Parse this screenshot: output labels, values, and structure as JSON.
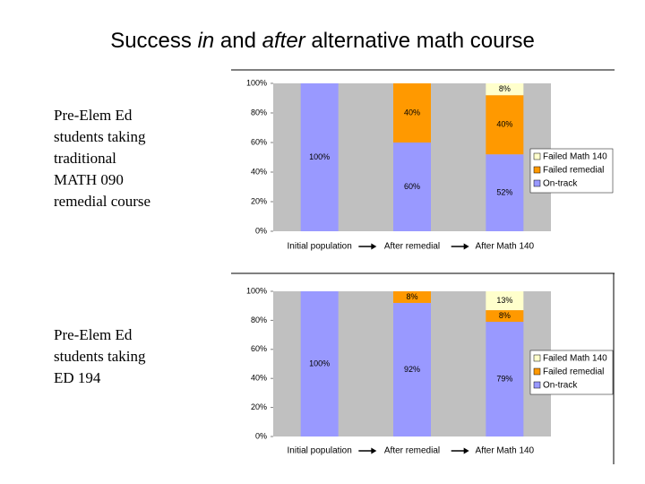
{
  "title": [
    "Success ",
    "in",
    " and ",
    "after",
    " alternative math course"
  ],
  "captions": [
    [
      "Pre-Elem Ed",
      "students taking",
      "traditional",
      "MATH 090",
      "remedial course"
    ],
    [
      "Pre-Elem Ed",
      "students taking",
      "ED 194"
    ]
  ],
  "chart_data": [
    {
      "type": "stacked-bar",
      "categories": [
        "Initial population",
        "After remedial",
        "After Math 140"
      ],
      "ylim": [
        0,
        100
      ],
      "yticks": [
        {
          "value": 0,
          "label": "0%"
        },
        {
          "value": 20,
          "label": "20%"
        },
        {
          "value": 40,
          "label": "40%"
        },
        {
          "value": 60,
          "label": "60%"
        },
        {
          "value": 80,
          "label": "80%"
        },
        {
          "value": 100,
          "label": "100%"
        }
      ],
      "legend": "right",
      "series": [
        {
          "name": "On-track",
          "color": "#9999ff",
          "values": [
            100,
            60,
            52
          ],
          "value_labels": [
            "100%",
            "60%",
            "52%"
          ]
        },
        {
          "name": "Failed remedial",
          "color": "#ff9900",
          "values": [
            0,
            40,
            40
          ],
          "value_labels": [
            null,
            "40%",
            "40%"
          ]
        },
        {
          "name": "Failed Math 140",
          "color": "#ffffcc",
          "values": [
            0,
            0,
            8
          ],
          "value_labels": [
            null,
            null,
            "8%"
          ]
        }
      ]
    },
    {
      "type": "stacked-bar",
      "categories": [
        "Initial population",
        "After remedial",
        "After Math 140"
      ],
      "ylim": [
        0,
        100
      ],
      "yticks": [
        {
          "value": 0,
          "label": "0%"
        },
        {
          "value": 20,
          "label": "20%"
        },
        {
          "value": 40,
          "label": "40%"
        },
        {
          "value": 60,
          "label": "60%"
        },
        {
          "value": 80,
          "label": "80%"
        },
        {
          "value": 100,
          "label": "100%"
        }
      ],
      "legend": "right",
      "series": [
        {
          "name": "On-track",
          "color": "#9999ff",
          "values": [
            100,
            92,
            79
          ],
          "value_labels": [
            "100%",
            "92%",
            "79%"
          ]
        },
        {
          "name": "Failed remedial",
          "color": "#ff9900",
          "values": [
            0,
            8,
            8
          ],
          "value_labels": [
            null,
            "8%",
            "8%"
          ]
        },
        {
          "name": "Failed Math 140",
          "color": "#ffffcc",
          "values": [
            0,
            0,
            13
          ],
          "value_labels": [
            null,
            null,
            "13%"
          ]
        }
      ]
    }
  ]
}
